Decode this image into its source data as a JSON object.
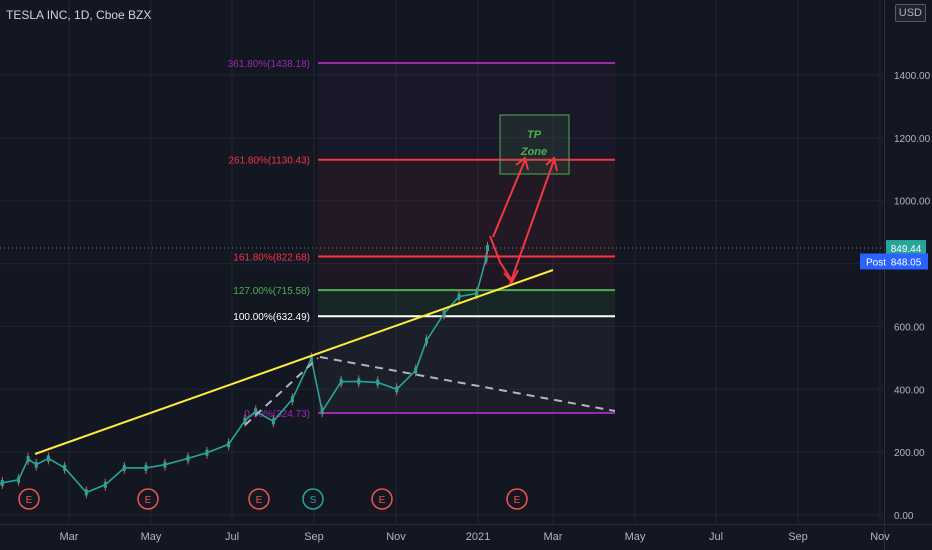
{
  "header": {
    "title": "TESLA INC, 1D, Cboe BZX",
    "currency": "USD",
    "unit_marker": "1"
  },
  "price_tags": {
    "last": {
      "value": "849.44",
      "color": "#26a69a"
    },
    "post_label": "Post",
    "post": {
      "value": "848.05",
      "color": "#2962ff"
    }
  },
  "chart_data": {
    "type": "line",
    "title": "TESLA INC, 1D, Cboe BZX",
    "y_ticks": [
      0,
      200,
      400,
      600,
      800,
      1000,
      1200,
      1400
    ],
    "y_tick_labels": [
      "0.00",
      "200.00",
      "400.00",
      "600.00",
      "800.00",
      "1000.00",
      "1200.00",
      "1400.00"
    ],
    "x_ticks": [
      "Mar",
      "May",
      "Jul",
      "Sep",
      "Nov",
      "2021",
      "Mar",
      "May",
      "Jul",
      "Sep",
      "Nov"
    ],
    "ylim": [
      0,
      1600
    ],
    "grid": true,
    "fib_levels": [
      {
        "label": "361.80%(1438.18)",
        "value": 1438.18,
        "color": "#9c27b0"
      },
      {
        "label": "261.80%(1130.43)",
        "value": 1130.43,
        "color": "#f23645"
      },
      {
        "label": "161.80%(822.68)",
        "value": 822.68,
        "color": "#f23645"
      },
      {
        "label": "127.00%(715.58)",
        "value": 715.58,
        "color": "#4caf50"
      },
      {
        "label": "100.00%(632.49)",
        "value": 632.49,
        "color": "#ffffff"
      },
      {
        "label": "0.00%(324.73)",
        "value": 324.73,
        "color": "#9c27b0"
      }
    ],
    "series": [
      {
        "points": [
          [
            "2020-01-02",
            86
          ],
          [
            "2020-01-16",
            102
          ],
          [
            "2020-01-28",
            112
          ],
          [
            "2020-02-04",
            178
          ],
          [
            "2020-02-10",
            160
          ],
          [
            "2020-02-19",
            180
          ],
          [
            "2020-03-02",
            150
          ],
          [
            "2020-03-18",
            72
          ],
          [
            "2020-04-01",
            96
          ],
          [
            "2020-04-15",
            150
          ],
          [
            "2020-05-01",
            150
          ],
          [
            "2020-05-15",
            160
          ],
          [
            "2020-06-01",
            180
          ],
          [
            "2020-06-15",
            198
          ],
          [
            "2020-07-01",
            225
          ],
          [
            "2020-07-13",
            300
          ],
          [
            "2020-07-21",
            330
          ],
          [
            "2020-08-03",
            298
          ],
          [
            "2020-08-17",
            368
          ],
          [
            "2020-08-31",
            498
          ],
          [
            "2020-09-08",
            330
          ],
          [
            "2020-09-22",
            424
          ],
          [
            "2020-10-05",
            425
          ],
          [
            "2020-10-19",
            422
          ],
          [
            "2020-11-02",
            400
          ],
          [
            "2020-11-16",
            460
          ],
          [
            "2020-11-24",
            555
          ],
          [
            "2020-12-07",
            641
          ],
          [
            "2020-12-18",
            695
          ],
          [
            "2020-12-31",
            705
          ],
          [
            "2021-01-07",
            816
          ],
          [
            "2021-01-08",
            849.44
          ]
        ]
      }
    ],
    "annotations": {
      "tp_zone_line1": "TP",
      "tp_zone_line2": "Zone",
      "event_markers": [
        "E",
        "E",
        "E",
        "S",
        "E",
        "E"
      ]
    }
  }
}
